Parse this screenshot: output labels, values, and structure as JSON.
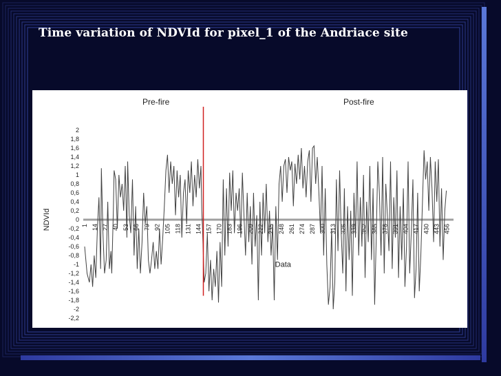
{
  "slide": {
    "title": "Time variation of NDVId for pixel_1 of the Andriace site"
  },
  "colors": {
    "background": "#070a2a",
    "frame": "#3a4bb0",
    "series": "#404040",
    "fire_marker": "#d02020",
    "zero_line": "#a0a0a0"
  },
  "chart_data": {
    "type": "line",
    "title": "",
    "xlabel": "Data",
    "ylabel": "NDVId",
    "ylim": [
      -2.2,
      2
    ],
    "yticks": [
      2,
      1.8,
      1.6,
      1.4,
      1.2,
      1,
      0.8,
      0.6,
      0.4,
      0.2,
      0,
      -0.2,
      -0.4,
      -0.6,
      -0.8,
      -1,
      -1.2,
      -1.4,
      -1.6,
      -1.8,
      -2,
      -2.2
    ],
    "ytick_labels": [
      "2",
      "1,8",
      "1,6",
      "1,4",
      "1,2",
      "1",
      "0,8",
      "0,6",
      "0,4",
      "0,2",
      "0",
      "-0,2",
      "-0,4",
      "-0,6",
      "-0,8",
      "-1",
      "-1,2",
      "-1,4",
      "-1,6",
      "-1,8",
      "-2",
      "-2,2"
    ],
    "xlim": [
      1,
      464
    ],
    "xticks": [
      1,
      14,
      27,
      40,
      53,
      66,
      79,
      92,
      105,
      118,
      131,
      144,
      157,
      170,
      183,
      196,
      209,
      222,
      235,
      248,
      261,
      274,
      287,
      300,
      313,
      326,
      339,
      352,
      365,
      378,
      391,
      404,
      417,
      430,
      443,
      456
    ],
    "xtick_labels": [
      "1",
      "14",
      "27",
      "40",
      "53",
      "66",
      "79",
      "92",
      "105",
      "118",
      "131",
      "144",
      "157",
      "170",
      "183",
      "196",
      "209",
      "222",
      "235",
      "248",
      "261",
      "274",
      "287",
      "300",
      "313",
      "326",
      "339",
      "352",
      "365",
      "378",
      "391",
      "404",
      "417",
      "430",
      "443",
      "456"
    ],
    "annotations": [
      {
        "text": "Pre-fire"
      },
      {
        "text": "Post-fire"
      }
    ],
    "fire_event_x": 150,
    "series": [
      {
        "points": [
          [
            1,
            -0.6
          ],
          [
            4,
            -1.2
          ],
          [
            7,
            -1.4
          ],
          [
            9,
            -1.0
          ],
          [
            11,
            -1.5
          ],
          [
            13,
            -0.8
          ],
          [
            15,
            -1.3
          ],
          [
            17,
            -0.2
          ],
          [
            19,
            0.5
          ],
          [
            21,
            -1.1
          ],
          [
            22,
            1.15
          ],
          [
            24,
            -0.3
          ],
          [
            26,
            -1.2
          ],
          [
            28,
            -0.9
          ],
          [
            30,
            0.4
          ],
          [
            32,
            -1.1
          ],
          [
            34,
            -0.7
          ],
          [
            35,
            -1.2
          ],
          [
            37,
            0.2
          ],
          [
            38,
            1.1
          ],
          [
            40,
            0.9
          ],
          [
            42,
            -0.2
          ],
          [
            44,
            1.0
          ],
          [
            46,
            0.5
          ],
          [
            48,
            0.8
          ],
          [
            50,
            0.2
          ],
          [
            52,
            1.2
          ],
          [
            54,
            -0.4
          ],
          [
            55,
            1.3
          ],
          [
            57,
            0.1
          ],
          [
            59,
            -0.3
          ],
          [
            61,
            0.9
          ],
          [
            63,
            -0.8
          ],
          [
            65,
            0.3
          ],
          [
            67,
            -1.1
          ],
          [
            69,
            -0.2
          ],
          [
            71,
            -1.2
          ],
          [
            73,
            -0.5
          ],
          [
            75,
            0.6
          ],
          [
            77,
            -0.1
          ],
          [
            79,
            0.3
          ],
          [
            81,
            -0.9
          ],
          [
            83,
            -1.2
          ],
          [
            85,
            -0.9
          ],
          [
            87,
            -0.5
          ],
          [
            89,
            -1.1
          ],
          [
            91,
            -0.7
          ],
          [
            93,
            -1.1
          ],
          [
            95,
            -0.2
          ],
          [
            97,
            -1.0
          ],
          [
            99,
            -0.4
          ],
          [
            101,
            0.3
          ],
          [
            103,
            1.1
          ],
          [
            105,
            1.45
          ],
          [
            107,
            0.6
          ],
          [
            109,
            1.3
          ],
          [
            111,
            0.8
          ],
          [
            113,
            1.2
          ],
          [
            115,
            0.1
          ],
          [
            117,
            1.1
          ],
          [
            119,
            0.5
          ],
          [
            121,
            1.0
          ],
          [
            123,
            -0.4
          ],
          [
            125,
            0.6
          ],
          [
            127,
            0.9
          ],
          [
            129,
            -0.1
          ],
          [
            131,
            1.1
          ],
          [
            133,
            0.6
          ],
          [
            135,
            1.3
          ],
          [
            137,
            0.3
          ],
          [
            139,
            1.0
          ],
          [
            141,
            0.5
          ],
          [
            143,
            1.35
          ],
          [
            145,
            0.7
          ],
          [
            147,
            1.2
          ],
          [
            148,
            0.2
          ],
          [
            149,
            -0.2
          ],
          [
            151,
            -1.4
          ],
          [
            153,
            -1.2
          ],
          [
            155,
            -0.3
          ],
          [
            157,
            -1.6
          ],
          [
            159,
            -0.9
          ],
          [
            161,
            -1.8
          ],
          [
            163,
            -1.1
          ],
          [
            165,
            -1.5
          ],
          [
            167,
            -0.7
          ],
          [
            169,
            -1.85
          ],
          [
            171,
            -0.5
          ],
          [
            173,
            -1.5
          ],
          [
            175,
            0.9
          ],
          [
            177,
            -0.8
          ],
          [
            179,
            0.7
          ],
          [
            181,
            -0.6
          ],
          [
            183,
            1.05
          ],
          [
            185,
            0.2
          ],
          [
            187,
            1.1
          ],
          [
            189,
            -0.3
          ],
          [
            191,
            0.6
          ],
          [
            193,
            0.2
          ],
          [
            195,
            0.7
          ],
          [
            197,
            -0.4
          ],
          [
            199,
            1.05
          ],
          [
            201,
            0.1
          ],
          [
            203,
            -0.8
          ],
          [
            205,
            0.6
          ],
          [
            207,
            -0.5
          ],
          [
            209,
            0.3
          ],
          [
            211,
            -1.0
          ],
          [
            213,
            0.6
          ],
          [
            215,
            -0.6
          ],
          [
            217,
            0.1
          ],
          [
            219,
            -1.8
          ],
          [
            221,
            0.4
          ],
          [
            223,
            -0.8
          ],
          [
            225,
            0.6
          ],
          [
            227,
            -0.3
          ],
          [
            229,
            0.8
          ],
          [
            231,
            -0.5
          ],
          [
            233,
            0.2
          ],
          [
            235,
            -0.8
          ],
          [
            237,
            -0.1
          ],
          [
            239,
            -1.8
          ],
          [
            241,
            0.3
          ],
          [
            243,
            -0.9
          ],
          [
            245,
            0.8
          ],
          [
            247,
            1.2
          ],
          [
            249,
            0.4
          ],
          [
            251,
            1.2
          ],
          [
            253,
            1.35
          ],
          [
            255,
            0.6
          ],
          [
            257,
            1.4
          ],
          [
            259,
            1.1
          ],
          [
            261,
            1.3
          ],
          [
            263,
            0.3
          ],
          [
            265,
            1.25
          ],
          [
            267,
            0.8
          ],
          [
            269,
            1.45
          ],
          [
            271,
            0.9
          ],
          [
            273,
            1.6
          ],
          [
            275,
            0.7
          ],
          [
            277,
            1.2
          ],
          [
            279,
            0.5
          ],
          [
            281,
            1.3
          ],
          [
            283,
            1.55
          ],
          [
            285,
            0.4
          ],
          [
            287,
            1.6
          ],
          [
            289,
            1.65
          ],
          [
            291,
            0.8
          ],
          [
            293,
            1.4
          ],
          [
            295,
            0.6
          ],
          [
            297,
            -0.3
          ],
          [
            299,
            1.2
          ],
          [
            301,
            -0.8
          ],
          [
            303,
            0.7
          ],
          [
            305,
            -1.0
          ],
          [
            307,
            -1.9
          ],
          [
            309,
            -1.5
          ],
          [
            311,
            -0.2
          ],
          [
            313,
            -2.0
          ],
          [
            315,
            -1.4
          ],
          [
            317,
            0.9
          ],
          [
            319,
            -0.7
          ],
          [
            321,
            1.1
          ],
          [
            323,
            -0.3
          ],
          [
            325,
            -1.2
          ],
          [
            327,
            0.7
          ],
          [
            329,
            -1.6
          ],
          [
            331,
            0.3
          ],
          [
            333,
            -0.9
          ],
          [
            335,
            0.2
          ],
          [
            337,
            -1.7
          ],
          [
            339,
            0.6
          ],
          [
            341,
            -0.4
          ],
          [
            343,
            1.3
          ],
          [
            345,
            -0.8
          ],
          [
            347,
            0.5
          ],
          [
            349,
            -0.6
          ],
          [
            351,
            1.0
          ],
          [
            353,
            -1.3
          ],
          [
            355,
            0.4
          ],
          [
            357,
            -0.5
          ],
          [
            359,
            1.2
          ],
          [
            361,
            -0.9
          ],
          [
            363,
            0.7
          ],
          [
            365,
            -1.9
          ],
          [
            367,
            -0.4
          ],
          [
            369,
            1.3
          ],
          [
            371,
            0.6
          ],
          [
            373,
            -0.8
          ],
          [
            375,
            1.4
          ],
          [
            377,
            -1.2
          ],
          [
            379,
            0.8
          ],
          [
            381,
            0.1
          ],
          [
            383,
            -0.7
          ],
          [
            385,
            1.3
          ],
          [
            387,
            -1.1
          ],
          [
            389,
            0.5
          ],
          [
            391,
            -0.4
          ],
          [
            393,
            1.1
          ],
          [
            395,
            -1.3
          ],
          [
            397,
            0.3
          ],
          [
            399,
            -0.9
          ],
          [
            401,
            0.7
          ],
          [
            403,
            -1.5
          ],
          [
            405,
            -0.6
          ],
          [
            407,
            1.3
          ],
          [
            409,
            -1.2
          ],
          [
            411,
            -0.3
          ],
          [
            413,
            0.9
          ],
          [
            415,
            -1.75
          ],
          [
            417,
            -1.1
          ],
          [
            419,
            0.6
          ],
          [
            421,
            -1.6
          ],
          [
            423,
            -0.8
          ],
          [
            425,
            0.4
          ],
          [
            427,
            1.55
          ],
          [
            429,
            0.9
          ],
          [
            431,
            1.3
          ],
          [
            433,
            0.2
          ],
          [
            435,
            1.4
          ],
          [
            437,
            0.7
          ],
          [
            439,
            -0.5
          ],
          [
            441,
            1.3
          ],
          [
            443,
            0.4
          ],
          [
            445,
            1.35
          ],
          [
            447,
            -0.6
          ],
          [
            449,
            0.7
          ],
          [
            451,
            -0.9
          ],
          [
            453,
            0.2
          ],
          [
            455,
            0.65
          ]
        ]
      }
    ]
  }
}
